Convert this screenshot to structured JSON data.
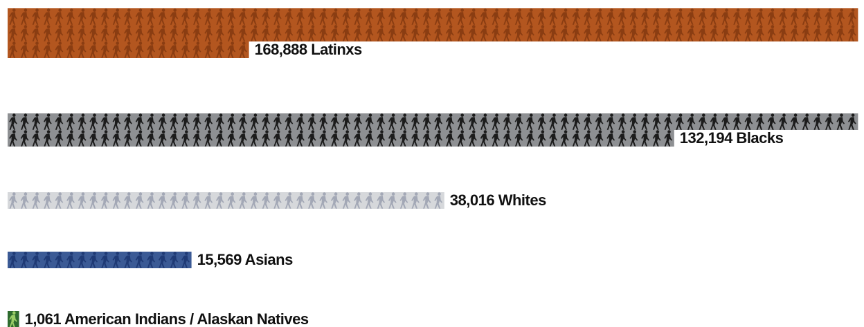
{
  "chart_data": {
    "type": "bar",
    "orientation": "horizontal",
    "style": "pictogram",
    "icon": "walking-person-icon",
    "categories": [
      "Latinxs",
      "Blacks",
      "Whites",
      "Asians",
      "American Indians / Alaskan Natives"
    ],
    "values": [
      168888,
      132194,
      38016,
      15569,
      1061
    ],
    "colors": {
      "background": [
        "#b3561f",
        "#8e9093",
        "#d6d8db",
        "#3b5a95",
        "#2e6b2e"
      ],
      "figure": [
        "#8a3d12",
        "#1c1c1c",
        "#a3a8b6",
        "#1f3a75",
        "#99cc66"
      ]
    },
    "labels": [
      "168,888 Latinxs",
      "132,194 Blacks",
      "38,016 Whites",
      "15,569 Asians",
      "1,061 American Indians / Alaskan Natives"
    ],
    "title": "",
    "xlabel": "",
    "ylabel": ""
  }
}
